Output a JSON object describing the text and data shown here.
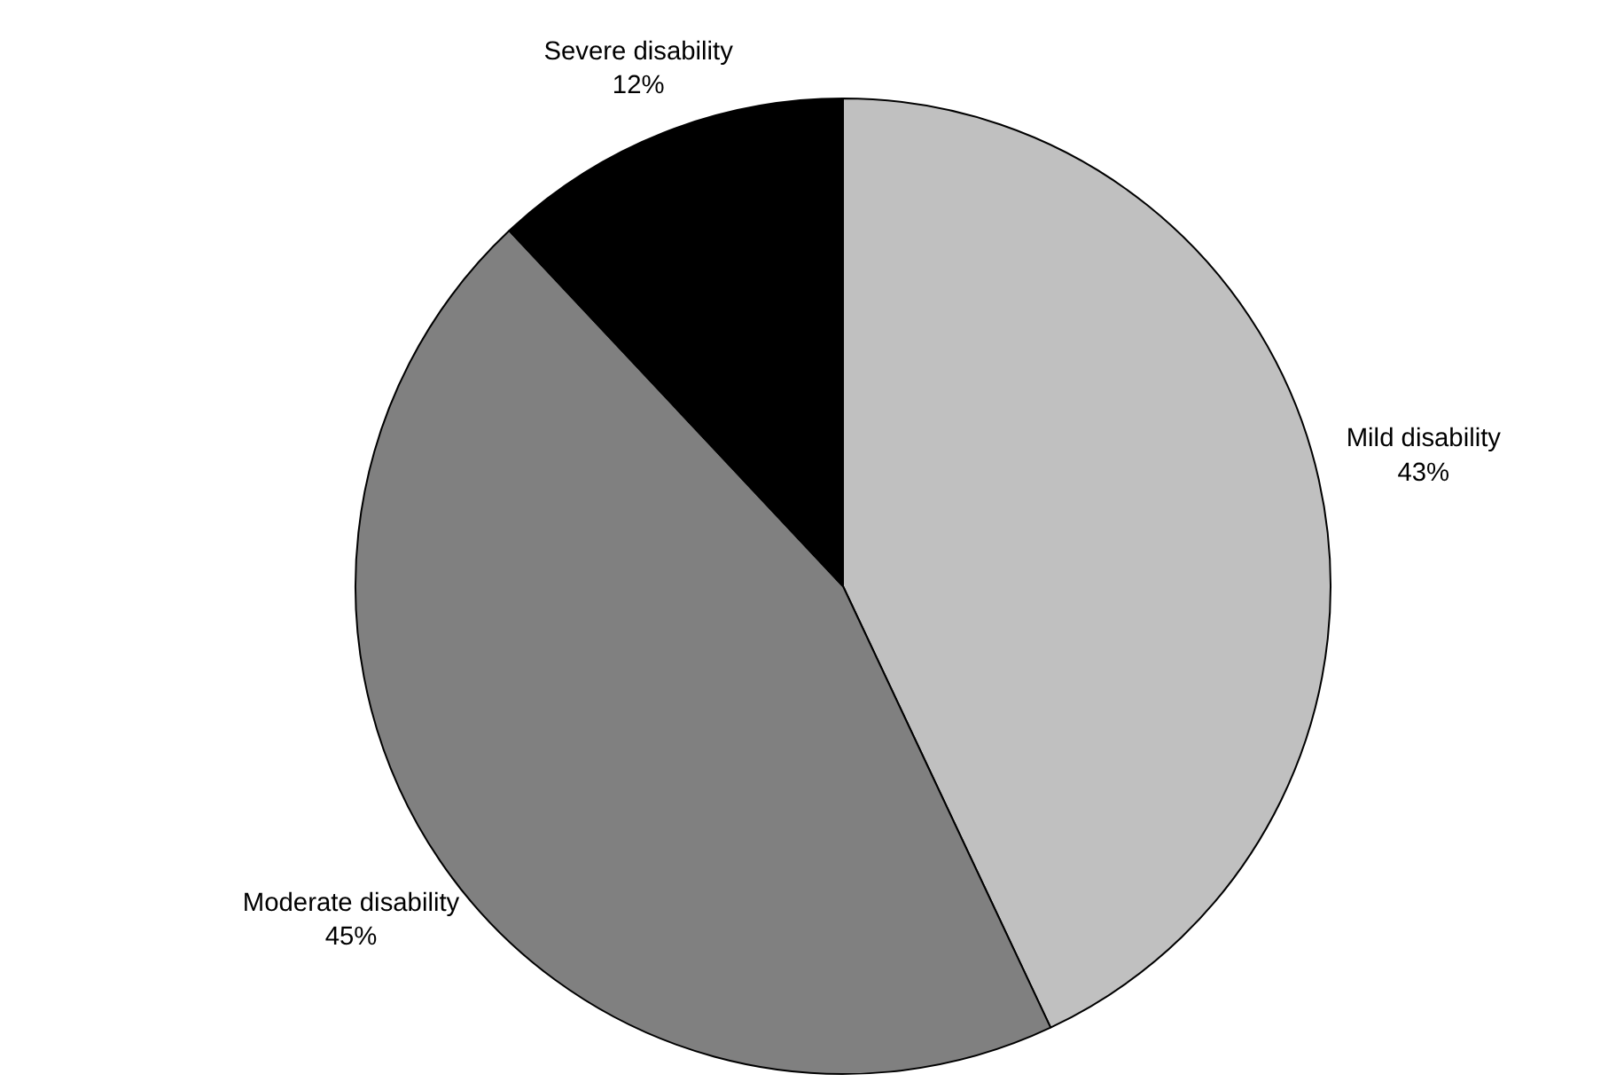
{
  "chart_data": {
    "type": "pie",
    "categories": [
      "Mild disability",
      "Moderate disability",
      "Severe disability"
    ],
    "values": [
      43,
      45,
      12
    ],
    "colors": [
      "#c0c0c0",
      "#808080",
      "#000000"
    ],
    "value_labels": [
      "43%",
      "45%",
      "12%"
    ]
  }
}
